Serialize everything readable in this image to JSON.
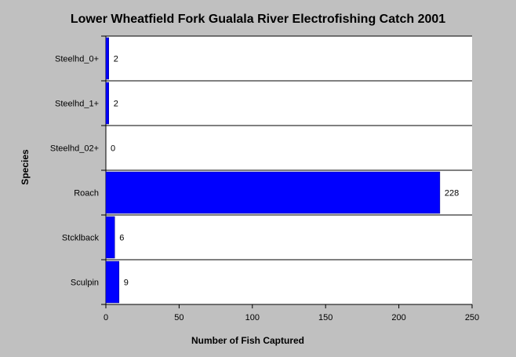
{
  "chart_data": {
    "type": "bar",
    "orientation": "horizontal",
    "title": "Lower Wheatfield Fork Gualala River Electrofishing Catch 2001",
    "xlabel": "Number of Fish Captured",
    "ylabel": "Species",
    "categories": [
      "Steelhd_0+",
      "Steelhd_1+",
      "Steelhd_02+",
      "Roach",
      "Stcklback",
      "Sculpin"
    ],
    "values": [
      2,
      2,
      0,
      228,
      6,
      9
    ],
    "xlim": [
      0,
      250
    ],
    "xticks": [
      0,
      50,
      100,
      150,
      200,
      250
    ],
    "bar_color": "#0000ff",
    "background_color": "#c0c0c0",
    "plot_background_color": "#ffffff",
    "grid": false
  }
}
